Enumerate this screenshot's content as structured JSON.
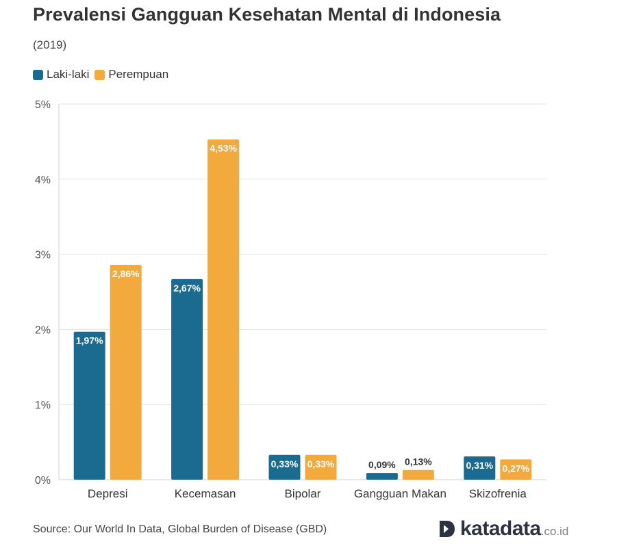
{
  "title": "Prevalensi Gangguan Kesehatan Mental di Indonesia",
  "subtitle": "(2019)",
  "source": "Source: Our World In Data, Global Burden of Disease (GBD)",
  "logo": {
    "main": "katadata",
    "suffix": ".co.id",
    "icon": "katadata-d-logo-icon"
  },
  "colors": {
    "laki": "#1b6a8f",
    "perempuan": "#f2aa3c",
    "grid": "#e3e3e3",
    "axis_text": "#555555"
  },
  "chart_data": {
    "type": "bar",
    "title": "Prevalensi Gangguan Kesehatan Mental di Indonesia",
    "subtitle": "(2019)",
    "categories": [
      "Depresi",
      "Kecemasan",
      "Bipolar",
      "Gangguan Makan",
      "Skizofrenia"
    ],
    "series": [
      {
        "name": "Laki-laki",
        "color": "#1b6a8f",
        "values": [
          1.97,
          2.67,
          0.33,
          0.09,
          0.31
        ],
        "labels": [
          "1,97%",
          "2,67%",
          "0,33%",
          "0,09%",
          "0,31%"
        ]
      },
      {
        "name": "Perempuan",
        "color": "#f2aa3c",
        "values": [
          2.86,
          4.53,
          0.33,
          0.13,
          0.27
        ],
        "labels": [
          "2,86%",
          "4,53%",
          "0,33%",
          "0,13%",
          "0,27%"
        ]
      }
    ],
    "yticks": [
      "0%",
      "1%",
      "2%",
      "3%",
      "4%",
      "5%"
    ],
    "ylim": [
      0,
      5
    ],
    "legend_position": "top-left",
    "grid": true
  }
}
